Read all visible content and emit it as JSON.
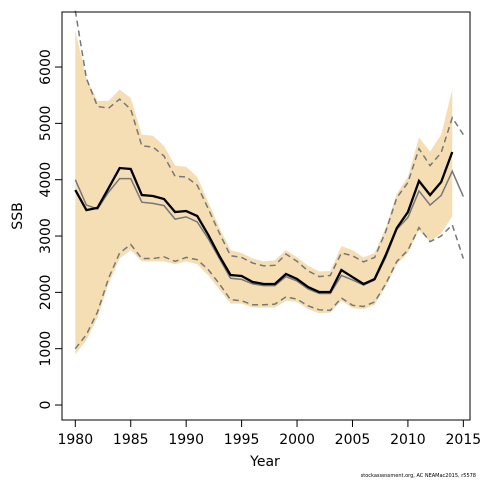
{
  "chart_data": {
    "type": "line",
    "xlabel": "Year",
    "ylabel": "SSB",
    "footnote": "stockassessment.org, AC NEAMac2015, r5578",
    "x": [
      1980,
      1981,
      1982,
      1983,
      1984,
      1985,
      1986,
      1987,
      1988,
      1989,
      1990,
      1991,
      1992,
      1993,
      1994,
      1995,
      1996,
      1997,
      1998,
      1999,
      2000,
      2001,
      2002,
      2003,
      2004,
      2005,
      2006,
      2007,
      2008,
      2009,
      2010,
      2011,
      2012,
      2013,
      2014,
      2015
    ],
    "xlim": [
      1978.8,
      2015.6
    ],
    "xticks": [
      1980,
      1985,
      1990,
      1995,
      2000,
      2005,
      2010,
      2015
    ],
    "ylim": [
      -266,
      6977
    ],
    "yticks": [
      0,
      1000,
      2000,
      3000,
      4000,
      5000,
      6000
    ],
    "band": {
      "color": "#f5deb3",
      "upper": [
        6650,
        5800,
        5400,
        5400,
        5600,
        5450,
        4800,
        4780,
        4600,
        4250,
        4230,
        4050,
        3600,
        3150,
        2750,
        2700,
        2600,
        2550,
        2570,
        2750,
        2620,
        2470,
        2370,
        2380,
        2820,
        2750,
        2620,
        2700,
        3150,
        3750,
        4050,
        4750,
        4500,
        4800,
        5600,
        null
      ],
      "lower": [
        900,
        1150,
        1550,
        2150,
        2600,
        2750,
        2550,
        2550,
        2550,
        2500,
        2550,
        2500,
        2300,
        2050,
        1800,
        1800,
        1730,
        1730,
        1730,
        1850,
        1830,
        1700,
        1630,
        1640,
        1850,
        1720,
        1700,
        1780,
        2100,
        2500,
        2700,
        3100,
        2900,
        3050,
        3350,
        null
      ]
    },
    "series": [
      {
        "color": "#777777",
        "dash": true,
        "width": 1.5,
        "values": [
          7000,
          5800,
          5300,
          5270,
          5430,
          5250,
          4600,
          4580,
          4420,
          4060,
          4050,
          3900,
          3480,
          3050,
          2650,
          2620,
          2520,
          2470,
          2480,
          2680,
          2550,
          2380,
          2280,
          2300,
          2700,
          2650,
          2540,
          2620,
          3080,
          3680,
          3950,
          4550,
          4250,
          4480,
          5100,
          4800
        ]
      },
      {
        "color": "#777777",
        "dash": true,
        "width": 1.5,
        "values": [
          1000,
          1250,
          1650,
          2250,
          2700,
          2850,
          2600,
          2600,
          2630,
          2550,
          2620,
          2580,
          2400,
          2150,
          1870,
          1850,
          1780,
          1780,
          1790,
          1920,
          1880,
          1760,
          1690,
          1680,
          1900,
          1770,
          1750,
          1830,
          2150,
          2550,
          2750,
          3150,
          2900,
          3000,
          3200,
          2600
        ]
      },
      {
        "color": "#777777",
        "dash": false,
        "width": 1.5,
        "values": [
          4000,
          3550,
          3480,
          3780,
          4020,
          4020,
          3600,
          3580,
          3540,
          3300,
          3340,
          3250,
          2950,
          2600,
          2250,
          2230,
          2150,
          2120,
          2120,
          2280,
          2200,
          2060,
          1980,
          1980,
          2300,
          2220,
          2130,
          2220,
          2620,
          3120,
          3330,
          3800,
          3550,
          3720,
          4150,
          3700
        ]
      },
      {
        "color": "#000000",
        "dash": false,
        "width": 2.3,
        "values": [
          3817,
          3460,
          3500,
          3850,
          4207,
          4190,
          3728,
          3710,
          3657,
          3426,
          3444,
          3355,
          3018,
          2645,
          2308,
          2290,
          2184,
          2148,
          2148,
          2326,
          2237,
          2095,
          2006,
          2006,
          2397,
          2272,
          2148,
          2237,
          2663,
          3142,
          3426,
          3977,
          3728,
          3959,
          4491,
          null
        ]
      }
    ]
  }
}
